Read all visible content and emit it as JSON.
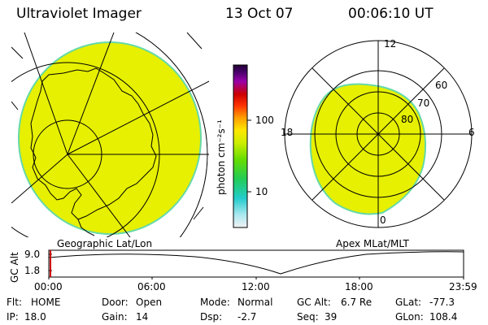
{
  "header": {
    "instrument": "Ultraviolet Imager",
    "date": "13 Oct 07",
    "time": "00:06:10 UT"
  },
  "colorbar": {
    "label": "photon cm⁻²s⁻¹",
    "ticks": [
      "100",
      "10"
    ]
  },
  "left_panel": {
    "caption": "Geographic Lat/Lon"
  },
  "right_panel": {
    "caption": "Apex MLat/MLT",
    "mlt_labels": [
      "12",
      "18",
      "6",
      "0"
    ],
    "lat_labels": [
      "60",
      "70",
      "80"
    ]
  },
  "altitude_plot": {
    "ylabel": "GC Alt",
    "yticks": [
      "9.0",
      "1.8"
    ],
    "xticks": [
      "00:00",
      "06:00",
      "12:00",
      "18:00",
      "23:59"
    ]
  },
  "info": {
    "flt_label": "Flt:",
    "flt_value": "HOME",
    "ip_label": "IP:",
    "ip_value": "18.0",
    "door_label": "Door:",
    "door_value": "Open",
    "gain_label": "Gain:",
    "gain_value": "14",
    "mode_label": "Mode:",
    "mode_value": "Normal",
    "dsp_label": "Dsp:",
    "dsp_value": "-2.7",
    "gcalt_label": "GC Alt:",
    "gcalt_value": "6.7 Re",
    "seq_label": "Seq:",
    "seq_value": "39",
    "glat_label": "GLat:",
    "glat_value": "-77.3",
    "glon_label": "GLon:",
    "glon_value": "108.4"
  },
  "colors": {
    "oval": "#e6f000",
    "rim": "#66d9a8",
    "line": "#000000"
  }
}
